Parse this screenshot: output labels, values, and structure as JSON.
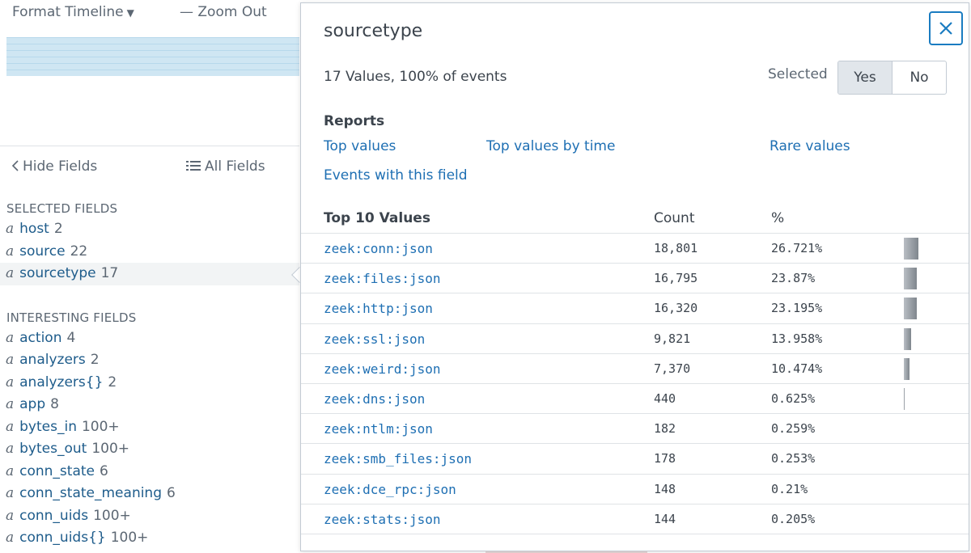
{
  "timeline": {
    "format_label": "Format Timeline",
    "zoom_out_label": "— Zoom Out"
  },
  "fields_toolbar": {
    "hide_fields_label": "Hide Fields",
    "all_fields_label": "All Fields"
  },
  "fields": {
    "selected_heading": "SELECTED FIELDS",
    "selected": [
      {
        "type": "a",
        "name": "host",
        "count": "2"
      },
      {
        "type": "a",
        "name": "source",
        "count": "22"
      },
      {
        "type": "a",
        "name": "sourcetype",
        "count": "17"
      }
    ],
    "interesting_heading": "INTERESTING FIELDS",
    "interesting": [
      {
        "type": "a",
        "name": "action",
        "count": "4"
      },
      {
        "type": "a",
        "name": "analyzers",
        "count": "2"
      },
      {
        "type": "a",
        "name": "analyzers{}",
        "count": "2"
      },
      {
        "type": "a",
        "name": "app",
        "count": "8"
      },
      {
        "type": "a",
        "name": "bytes_in",
        "count": "100+"
      },
      {
        "type": "a",
        "name": "bytes_out",
        "count": "100+"
      },
      {
        "type": "a",
        "name": "conn_state",
        "count": "6"
      },
      {
        "type": "a",
        "name": "conn_state_meaning",
        "count": "6"
      },
      {
        "type": "a",
        "name": "conn_uids",
        "count": "100+"
      },
      {
        "type": "a",
        "name": "conn_uids{}",
        "count": "100+"
      }
    ]
  },
  "popup": {
    "title": "sourcetype",
    "summary": "17 Values, 100% of events",
    "selected_label": "Selected",
    "yes_label": "Yes",
    "no_label": "No",
    "selected_value": "Yes",
    "reports_label": "Reports",
    "links": {
      "top_values": "Top values",
      "top_values_by_time": "Top values by time",
      "rare_values": "Rare values",
      "events_with_field": "Events with this field"
    },
    "table": {
      "col_values": "Top 10 Values",
      "col_count": "Count",
      "col_pct": "%",
      "rows": [
        {
          "value": "zeek:conn:json",
          "count": "18,801",
          "pct": "26.721%"
        },
        {
          "value": "zeek:files:json",
          "count": "16,795",
          "pct": "23.87%"
        },
        {
          "value": "zeek:http:json",
          "count": "16,320",
          "pct": "23.195%"
        },
        {
          "value": "zeek:ssl:json",
          "count": "9,821",
          "pct": "13.958%"
        },
        {
          "value": "zeek:weird:json",
          "count": "7,370",
          "pct": "10.474%"
        },
        {
          "value": "zeek:dns:json",
          "count": "440",
          "pct": "0.625%"
        },
        {
          "value": "zeek:ntlm:json",
          "count": "182",
          "pct": "0.259%"
        },
        {
          "value": "zeek:smb_files:json",
          "count": "178",
          "pct": "0.253%"
        },
        {
          "value": "zeek:dce_rpc:json",
          "count": "148",
          "pct": "0.21%"
        },
        {
          "value": "zeek:stats:json",
          "count": "144",
          "pct": "0.205%"
        }
      ]
    }
  },
  "colors": {
    "link": "#1e6fb3",
    "field_name": "#1e5c8b",
    "close_border": "#1a7cc1"
  }
}
